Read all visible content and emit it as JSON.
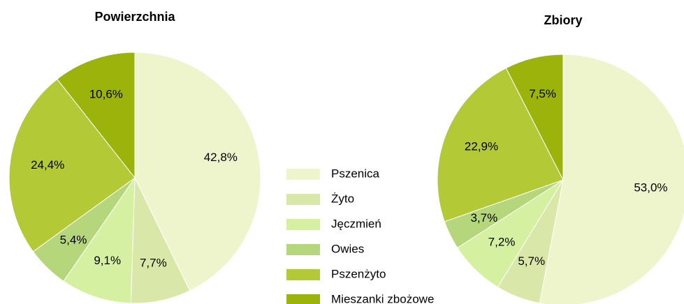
{
  "legend": {
    "categories": [
      "Pszenica",
      "Żyto",
      "Jęczmień",
      "Owies",
      "Pszenżyto",
      "Mieszanki zbożowe"
    ],
    "colors": [
      "#eef5cc",
      "#d9e8a8",
      "#d4f0a0",
      "#b5d67a",
      "#b3c935",
      "#9bb30a"
    ]
  },
  "chart_data": [
    {
      "type": "pie",
      "title": "Powierzchnia",
      "values": [
        42.8,
        7.7,
        9.1,
        5.4,
        24.4,
        10.6
      ],
      "value_labels": [
        "42,8%",
        "7,7%",
        "9,1%",
        "5,4%",
        "24,4%",
        "10,6%"
      ]
    },
    {
      "type": "pie",
      "title": "Zbiory",
      "values": [
        53.0,
        5.7,
        7.2,
        3.7,
        22.9,
        7.5
      ],
      "value_labels": [
        "53,0%",
        "5,7%",
        "7,2%",
        "3,7%",
        "22,9%",
        "7,5%"
      ]
    }
  ]
}
